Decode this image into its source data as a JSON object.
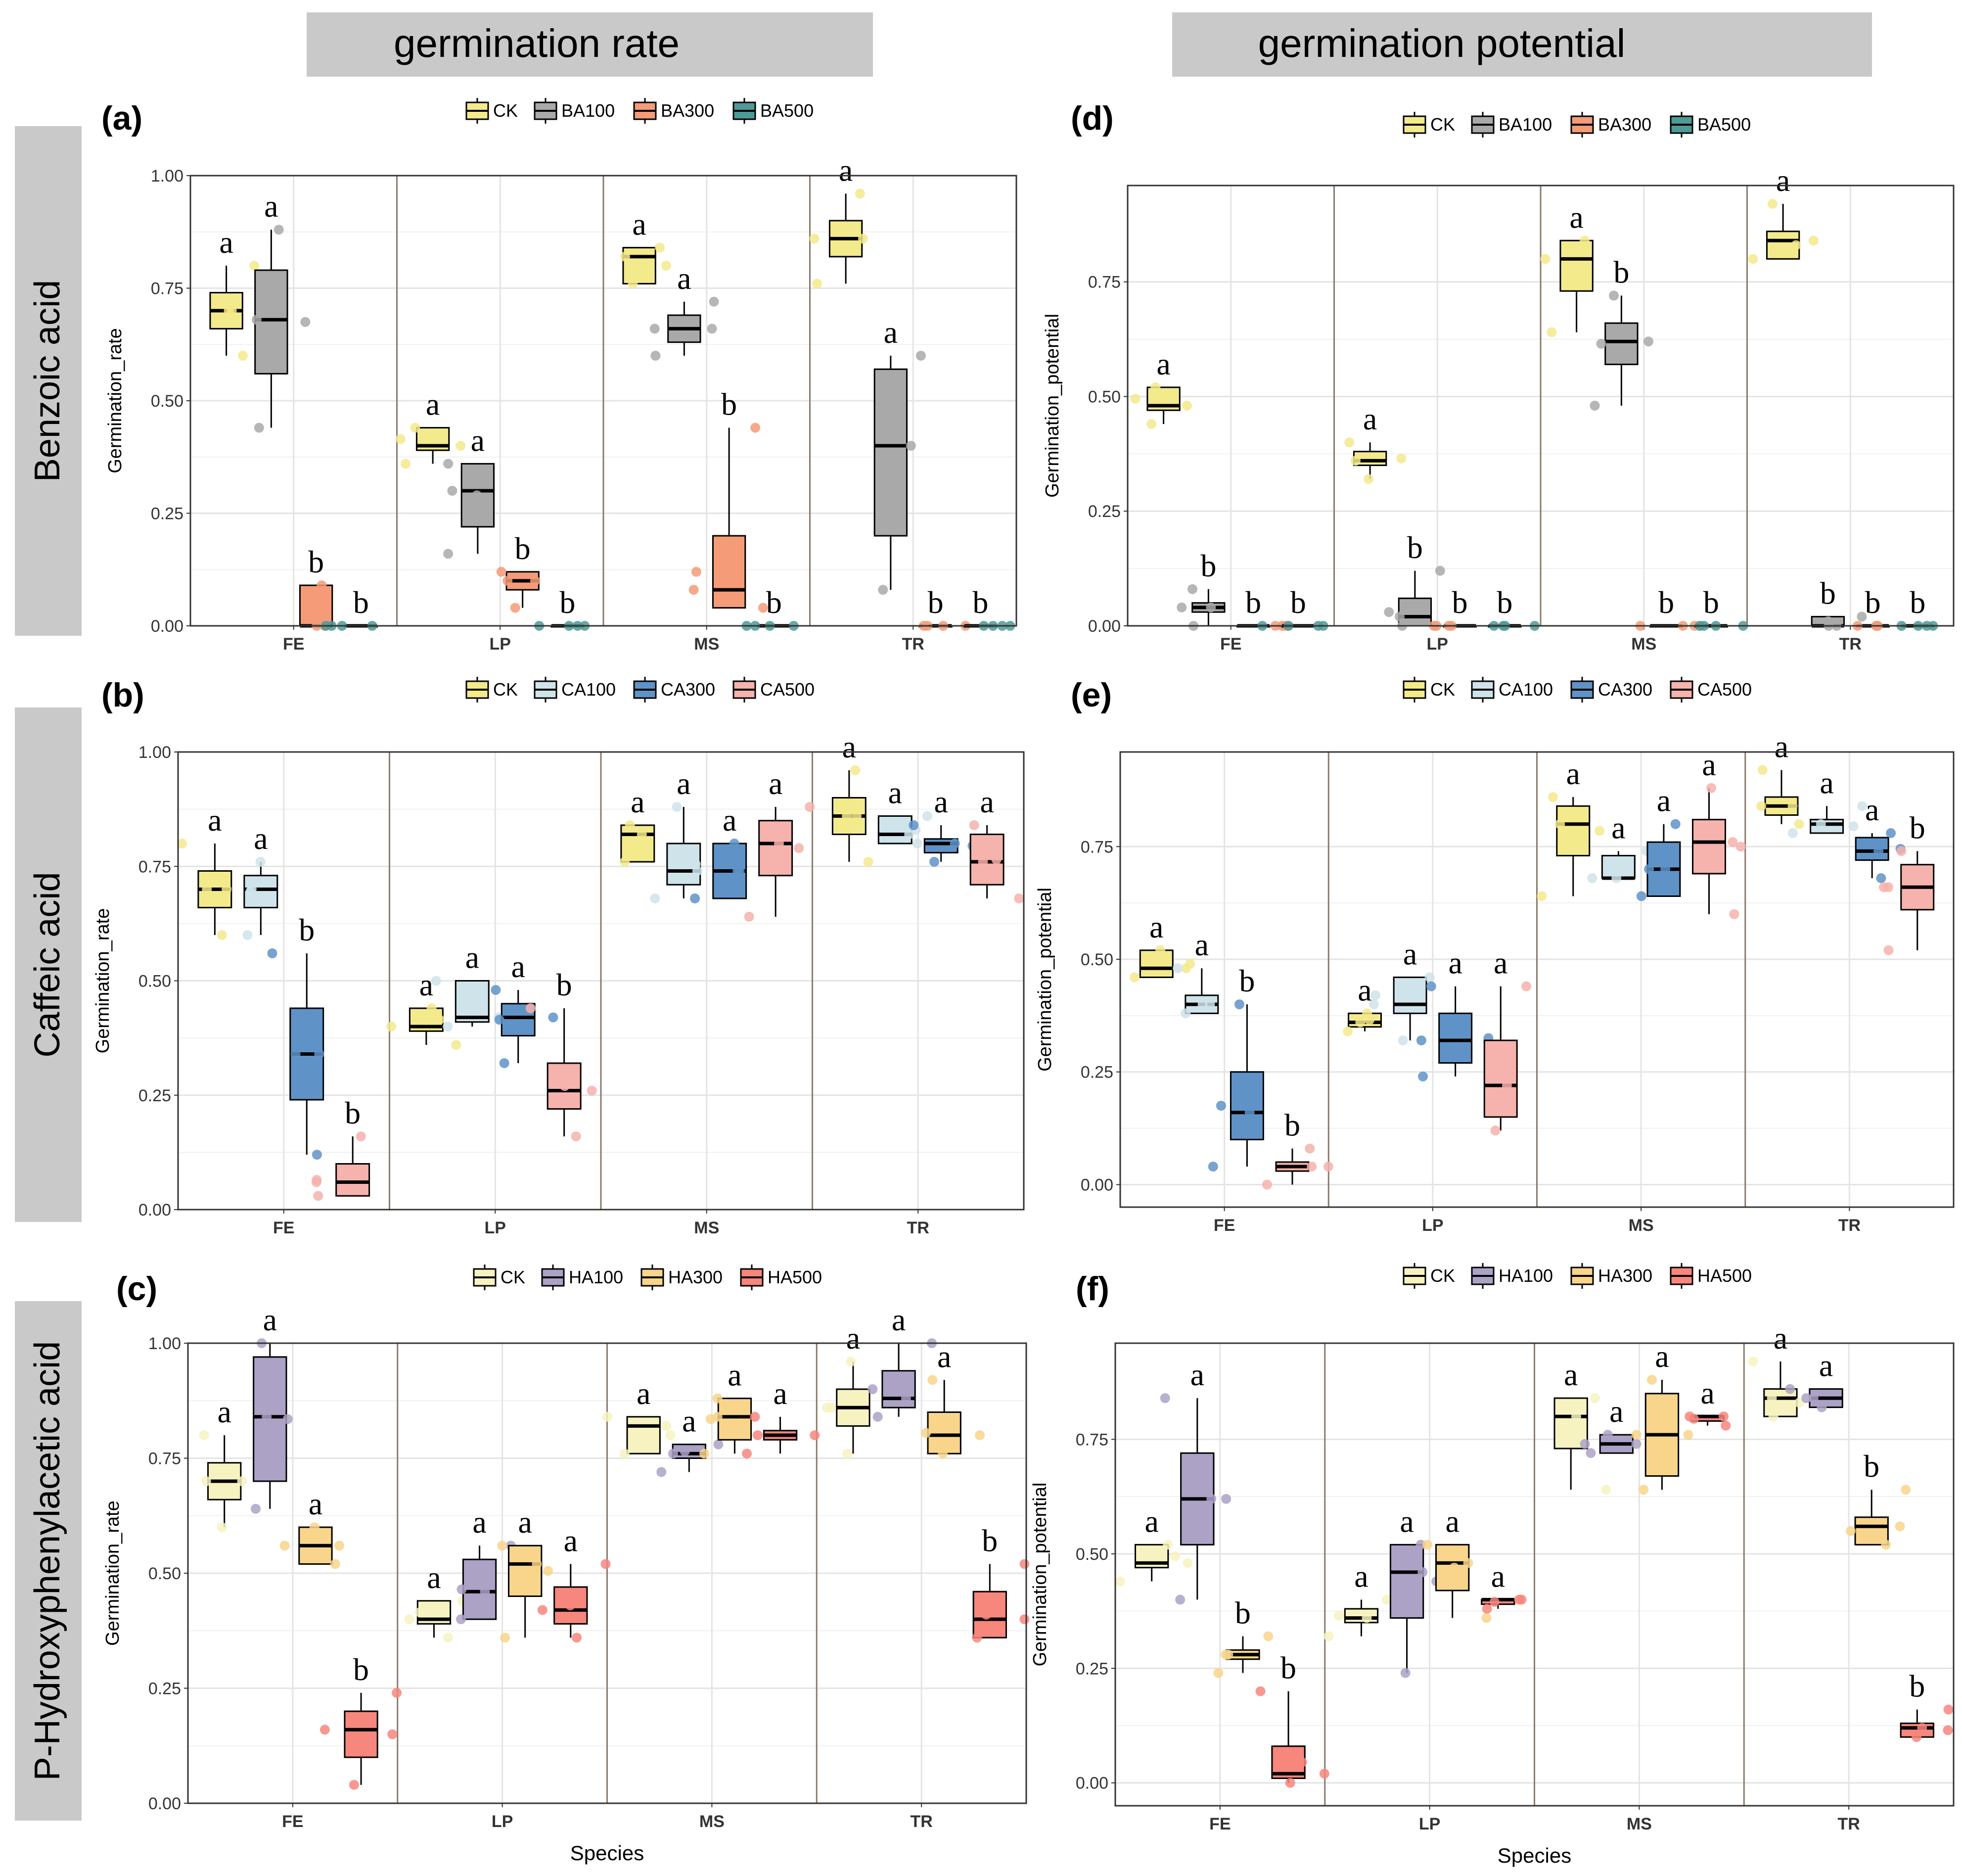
{
  "headers": {
    "left": "germination rate",
    "right": "germination potential"
  },
  "row_labels": [
    "Benzoic acid",
    "Caffeic acid",
    "P-Hydroxyphenylacetic acid"
  ],
  "species": [
    "FE",
    "LP",
    "MS",
    "TR"
  ],
  "colors": {
    "CK": "#f3ea8c",
    "BA100": "#a9a9a9",
    "BA300": "#f59b77",
    "BA500": "#4e9a96",
    "CA100": "#cfe3ea",
    "CA300": "#5f93c8",
    "CA500": "#f6b2ac",
    "HA100": "#aca2c6",
    "HA300": "#f8d58b",
    "HA500": "#f7867c",
    "CK_light": "#f6f3c0"
  },
  "chart_data": [
    {
      "panel": "(a)",
      "type": "boxplot",
      "ylabel": "Germination_rate",
      "xlabel": "",
      "ylim": [
        0,
        1
      ],
      "yticks": [
        "0.00",
        "0.25",
        "0.50",
        "0.75",
        "1.00"
      ],
      "legend": [
        "CK",
        "BA100",
        "BA300",
        "BA500"
      ],
      "categories": [
        "FE",
        "LP",
        "MS",
        "TR"
      ],
      "series": [
        {
          "name": "CK",
          "boxes": [
            [
              0.6,
              0.66,
              0.7,
              0.74,
              0.8
            ],
            [
              0.36,
              0.39,
              0.4,
              0.44,
              0.44
            ],
            [
              0.76,
              0.76,
              0.82,
              0.84,
              0.84
            ],
            [
              0.76,
              0.82,
              0.86,
              0.9,
              0.96
            ]
          ],
          "sig": [
            "a",
            "a",
            "a",
            "a"
          ]
        },
        {
          "name": "BA100",
          "boxes": [
            [
              0.44,
              0.56,
              0.68,
              0.79,
              0.88
            ],
            [
              0.16,
              0.22,
              0.3,
              0.36,
              0.36
            ],
            [
              0.6,
              0.63,
              0.66,
              0.69,
              0.72
            ],
            [
              0.08,
              0.2,
              0.4,
              0.57,
              0.6
            ]
          ],
          "sig": [
            "a",
            "a",
            "a",
            "a"
          ]
        },
        {
          "name": "BA300",
          "boxes": [
            [
              0,
              0,
              0,
              0.09,
              0.09
            ],
            [
              0.04,
              0.08,
              0.1,
              0.12,
              0.12
            ],
            [
              0.04,
              0.04,
              0.08,
              0.2,
              0.44
            ],
            [
              0,
              0,
              0,
              0,
              0
            ]
          ],
          "sig": [
            "b",
            "b",
            "b",
            "b"
          ]
        },
        {
          "name": "BA500",
          "boxes": [
            [
              0,
              0,
              0,
              0,
              0
            ],
            [
              0,
              0,
              0,
              0,
              0
            ],
            [
              0,
              0,
              0,
              0,
              0
            ],
            [
              0,
              0,
              0,
              0,
              0
            ]
          ],
          "sig": [
            "b",
            "b",
            "b",
            "b"
          ]
        }
      ]
    },
    {
      "panel": "(b)",
      "type": "boxplot",
      "ylabel": "Germination_rate",
      "xlabel": "",
      "ylim": [
        0,
        1
      ],
      "yticks": [
        "0.00",
        "0.25",
        "0.50",
        "0.75",
        "1.00"
      ],
      "legend": [
        "CK",
        "CA100",
        "CA300",
        "CA500"
      ],
      "categories": [
        "FE",
        "LP",
        "MS",
        "TR"
      ],
      "series": [
        {
          "name": "CK",
          "boxes": [
            [
              0.6,
              0.66,
              0.7,
              0.74,
              0.8
            ],
            [
              0.36,
              0.39,
              0.4,
              0.44,
              0.44
            ],
            [
              0.76,
              0.76,
              0.82,
              0.84,
              0.84
            ],
            [
              0.76,
              0.82,
              0.86,
              0.9,
              0.96
            ]
          ],
          "sig": [
            "a",
            "a",
            "a",
            "a"
          ]
        },
        {
          "name": "CA100",
          "boxes": [
            [
              0.6,
              0.66,
              0.7,
              0.73,
              0.76
            ],
            [
              0.4,
              0.41,
              0.42,
              0.5,
              0.5
            ],
            [
              0.68,
              0.71,
              0.74,
              0.8,
              0.88
            ],
            [
              0.8,
              0.8,
              0.82,
              0.86,
              0.86
            ]
          ],
          "sig": [
            "a",
            "a",
            "a",
            "a"
          ]
        },
        {
          "name": "CA300",
          "boxes": [
            [
              0.12,
              0.24,
              0.34,
              0.44,
              0.56
            ],
            [
              0.32,
              0.38,
              0.42,
              0.45,
              0.48
            ],
            [
              0.68,
              0.68,
              0.74,
              0.8,
              0.8
            ],
            [
              0.76,
              0.78,
              0.8,
              0.81,
              0.84
            ]
          ],
          "sig": [
            "b",
            "a",
            "a",
            "a"
          ]
        },
        {
          "name": "CA500",
          "boxes": [
            [
              0.03,
              0.03,
              0.06,
              0.1,
              0.16
            ],
            [
              0.16,
              0.22,
              0.26,
              0.32,
              0.44
            ],
            [
              0.64,
              0.73,
              0.8,
              0.85,
              0.88
            ],
            [
              0.68,
              0.71,
              0.76,
              0.82,
              0.84
            ]
          ],
          "sig": [
            "b",
            "b",
            "a",
            "a"
          ]
        }
      ]
    },
    {
      "panel": "(c)",
      "type": "boxplot",
      "ylabel": "Germination_rate",
      "xlabel": "Species",
      "ylim": [
        0,
        1
      ],
      "yticks": [
        "0.00",
        "0.25",
        "0.50",
        "0.75",
        "1.00"
      ],
      "legend": [
        "CK",
        "HA100",
        "HA300",
        "HA500"
      ],
      "categories": [
        "FE",
        "LP",
        "MS",
        "TR"
      ],
      "series": [
        {
          "name": "CK",
          "boxes": [
            [
              0.6,
              0.66,
              0.7,
              0.74,
              0.8
            ],
            [
              0.36,
              0.39,
              0.4,
              0.44,
              0.44
            ],
            [
              0.76,
              0.76,
              0.82,
              0.84,
              0.84
            ],
            [
              0.76,
              0.82,
              0.86,
              0.9,
              0.96
            ]
          ],
          "sig": [
            "a",
            "a",
            "a",
            "a"
          ]
        },
        {
          "name": "HA100",
          "boxes": [
            [
              0.64,
              0.7,
              0.84,
              0.97,
              1.0
            ],
            [
              0.4,
              0.4,
              0.46,
              0.53,
              0.56
            ],
            [
              0.72,
              0.75,
              0.76,
              0.78,
              0.78
            ],
            [
              0.84,
              0.86,
              0.88,
              0.94,
              1.0
            ]
          ],
          "sig": [
            "a",
            "a",
            "a",
            "a"
          ]
        },
        {
          "name": "HA300",
          "boxes": [
            [
              0.52,
              0.52,
              0.56,
              0.6,
              0.6
            ],
            [
              0.36,
              0.45,
              0.52,
              0.56,
              0.56
            ],
            [
              0.76,
              0.79,
              0.84,
              0.88,
              0.88
            ],
            [
              0.76,
              0.76,
              0.8,
              0.85,
              0.92
            ]
          ],
          "sig": [
            "a",
            "a",
            "a",
            "a"
          ]
        },
        {
          "name": "HA500",
          "boxes": [
            [
              0.04,
              0.1,
              0.16,
              0.2,
              0.24
            ],
            [
              0.36,
              0.39,
              0.42,
              0.47,
              0.52
            ],
            [
              0.76,
              0.79,
              0.8,
              0.81,
              0.84
            ],
            [
              0.36,
              0.36,
              0.4,
              0.46,
              0.52
            ]
          ],
          "sig": [
            "b",
            "a",
            "a",
            "b"
          ]
        }
      ]
    },
    {
      "panel": "(d)",
      "type": "boxplot",
      "ylabel": "Germination_potential",
      "xlabel": "",
      "ylim": [
        0,
        0.96
      ],
      "yticks": [
        "0.00",
        "0.25",
        "0.50",
        "0.75"
      ],
      "legend": [
        "CK",
        "BA100",
        "BA300",
        "BA500"
      ],
      "categories": [
        "FE",
        "LP",
        "MS",
        "TR"
      ],
      "series": [
        {
          "name": "CK",
          "boxes": [
            [
              0.44,
              0.47,
              0.48,
              0.52,
              0.52
            ],
            [
              0.32,
              0.35,
              0.36,
              0.38,
              0.4
            ],
            [
              0.64,
              0.73,
              0.8,
              0.84,
              0.84
            ],
            [
              0.8,
              0.8,
              0.84,
              0.86,
              0.92
            ]
          ],
          "sig": [
            "a",
            "a",
            "a",
            "a"
          ]
        },
        {
          "name": "BA100",
          "boxes": [
            [
              0,
              0.03,
              0.04,
              0.05,
              0.08
            ],
            [
              0,
              0,
              0.02,
              0.06,
              0.12
            ],
            [
              0.48,
              0.57,
              0.62,
              0.66,
              0.72
            ],
            [
              0,
              0,
              0,
              0.02,
              0.02
            ]
          ],
          "sig": [
            "b",
            "b",
            "b",
            "b"
          ]
        },
        {
          "name": "BA300",
          "boxes": [
            [
              0,
              0,
              0,
              0,
              0
            ],
            [
              0,
              0,
              0,
              0,
              0
            ],
            [
              0,
              0,
              0,
              0,
              0
            ],
            [
              0,
              0,
              0,
              0,
              0
            ]
          ],
          "sig": [
            "b",
            "b",
            "b",
            "b"
          ]
        },
        {
          "name": "BA500",
          "boxes": [
            [
              0,
              0,
              0,
              0,
              0
            ],
            [
              0,
              0,
              0,
              0,
              0
            ],
            [
              0,
              0,
              0,
              0,
              0
            ],
            [
              0,
              0,
              0,
              0,
              0
            ]
          ],
          "sig": [
            "b",
            "b",
            "b",
            "b"
          ]
        }
      ]
    },
    {
      "panel": "(e)",
      "type": "boxplot",
      "ylabel": "Germination_potential",
      "xlabel": "",
      "ylim": [
        -0.05,
        0.96
      ],
      "yticks": [
        "0.00",
        "0.25",
        "0.50",
        "0.75"
      ],
      "legend": [
        "CK",
        "CA100",
        "CA300",
        "CA500"
      ],
      "categories": [
        "FE",
        "LP",
        "MS",
        "TR"
      ],
      "series": [
        {
          "name": "CK",
          "boxes": [
            [
              0.46,
              0.46,
              0.48,
              0.52,
              0.52
            ],
            [
              0.34,
              0.35,
              0.36,
              0.38,
              0.38
            ],
            [
              0.64,
              0.73,
              0.8,
              0.84,
              0.86
            ],
            [
              0.8,
              0.82,
              0.84,
              0.86,
              0.92
            ]
          ],
          "sig": [
            "a",
            "a",
            "a",
            "a"
          ]
        },
        {
          "name": "CA100",
          "boxes": [
            [
              0.38,
              0.38,
              0.4,
              0.42,
              0.48
            ],
            [
              0.32,
              0.38,
              0.4,
              0.46,
              0.46
            ],
            [
              0.68,
              0.68,
              0.68,
              0.73,
              0.74
            ],
            [
              0.78,
              0.78,
              0.8,
              0.81,
              0.84
            ]
          ],
          "sig": [
            "a",
            "a",
            "a",
            "a"
          ]
        },
        {
          "name": "CA300",
          "boxes": [
            [
              0.04,
              0.1,
              0.16,
              0.25,
              0.4
            ],
            [
              0.24,
              0.27,
              0.32,
              0.38,
              0.44
            ],
            [
              0.64,
              0.64,
              0.7,
              0.76,
              0.8
            ],
            [
              0.68,
              0.72,
              0.74,
              0.77,
              0.78
            ]
          ],
          "sig": [
            "b",
            "a",
            "a",
            "a"
          ]
        },
        {
          "name": "CA500",
          "boxes": [
            [
              0,
              0.03,
              0.04,
              0.05,
              0.08
            ],
            [
              0.12,
              0.15,
              0.22,
              0.32,
              0.44
            ],
            [
              0.6,
              0.69,
              0.76,
              0.81,
              0.88
            ],
            [
              0.52,
              0.61,
              0.66,
              0.71,
              0.74
            ]
          ],
          "sig": [
            "b",
            "a",
            "a",
            "b"
          ]
        }
      ]
    },
    {
      "panel": "(f)",
      "type": "boxplot",
      "ylabel": "Germination_potential",
      "xlabel": "Species",
      "ylim": [
        -0.05,
        0.96
      ],
      "yticks": [
        "0.00",
        "0.25",
        "0.50",
        "0.75"
      ],
      "legend": [
        "CK",
        "HA100",
        "HA300",
        "HA500"
      ],
      "categories": [
        "FE",
        "LP",
        "MS",
        "TR"
      ],
      "series": [
        {
          "name": "CK",
          "boxes": [
            [
              0.44,
              0.47,
              0.48,
              0.52,
              0.52
            ],
            [
              0.32,
              0.35,
              0.36,
              0.38,
              0.4
            ],
            [
              0.64,
              0.73,
              0.8,
              0.84,
              0.84
            ],
            [
              0.8,
              0.8,
              0.84,
              0.86,
              0.92
            ]
          ],
          "sig": [
            "a",
            "a",
            "a",
            "a"
          ]
        },
        {
          "name": "HA100",
          "boxes": [
            [
              0.4,
              0.52,
              0.62,
              0.72,
              0.84
            ],
            [
              0.24,
              0.36,
              0.46,
              0.52,
              0.52
            ],
            [
              0.72,
              0.72,
              0.74,
              0.76,
              0.76
            ],
            [
              0.82,
              0.82,
              0.84,
              0.86,
              0.86
            ]
          ],
          "sig": [
            "a",
            "a",
            "a",
            "a"
          ]
        },
        {
          "name": "HA300",
          "boxes": [
            [
              0.24,
              0.27,
              0.28,
              0.29,
              0.32
            ],
            [
              0.36,
              0.42,
              0.48,
              0.52,
              0.52
            ],
            [
              0.64,
              0.67,
              0.76,
              0.85,
              0.88
            ],
            [
              0.52,
              0.52,
              0.56,
              0.58,
              0.64
            ]
          ],
          "sig": [
            "b",
            "a",
            "a",
            "b"
          ]
        },
        {
          "name": "HA500",
          "boxes": [
            [
              0,
              0.01,
              0.02,
              0.08,
              0.2
            ],
            [
              0.38,
              0.39,
              0.4,
              0.4,
              0.4
            ],
            [
              0.78,
              0.79,
              0.8,
              0.8,
              0.8
            ],
            [
              0.1,
              0.1,
              0.12,
              0.13,
              0.16
            ]
          ],
          "sig": [
            "b",
            "a",
            "a",
            "b"
          ]
        }
      ]
    }
  ]
}
